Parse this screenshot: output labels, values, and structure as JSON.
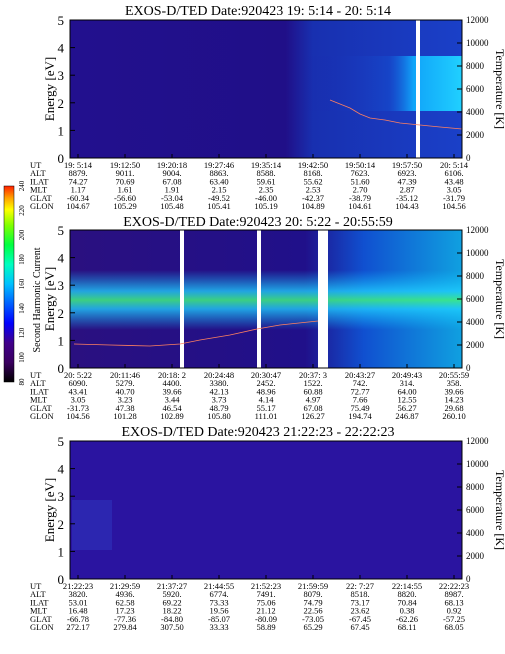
{
  "colorbar": {
    "label": "Second Harmonic Current",
    "ticks": [
      "240",
      "220",
      "200",
      "180",
      "160",
      "140",
      "120",
      "100",
      "80"
    ],
    "colors": [
      "#000000",
      "#3a0060",
      "#40008a",
      "#0000ff",
      "#0060ff",
      "#00c0ff",
      "#00ffc0",
      "#00ff40",
      "#80ff00",
      "#ffff00",
      "#ffa000",
      "#ff2000"
    ]
  },
  "chart_data": [
    {
      "type": "heatmap",
      "title": "EXOS-D/TED   Date:920423  19: 5:14 - 20: 5:14",
      "ylabel": "Energy [eV]",
      "ylabel_right": "Temperature [K]",
      "ylim": [
        0,
        5
      ],
      "yticks": [
        "0",
        "1",
        "2",
        "3",
        "4",
        "5"
      ],
      "ylim_right": [
        0,
        12000
      ],
      "yticks_right": [
        "0",
        "2000",
        "4000",
        "6000",
        "8000",
        "10000",
        "12000"
      ],
      "row_labels": [
        "UT",
        "ALT",
        "ILAT",
        "MLT",
        "GLAT",
        "GLON"
      ],
      "columns": [
        [
          "19: 5:14",
          "8879.",
          "74.27",
          "1.17",
          "-60.34",
          "104.67"
        ],
        [
          "19:12:50",
          "9011.",
          "70.69",
          "1.61",
          "-56.60",
          "105.29"
        ],
        [
          "19:20:18",
          "9004.",
          "67.08",
          "1.91",
          "-53.04",
          "105.48"
        ],
        [
          "19:27:46",
          "8863.",
          "63.40",
          "2.15",
          "-49.52",
          "105.41"
        ],
        [
          "19:35:14",
          "8588.",
          "59.61",
          "2.35",
          "-46.00",
          "105.19"
        ],
        [
          "19:42:50",
          "8168.",
          "55.62",
          "2.53",
          "-42.37",
          "104.89"
        ],
        [
          "19:50:14",
          "7623.",
          "51.60",
          "2.70",
          "-38.79",
          "104.61"
        ],
        [
          "19:57:50",
          "6923.",
          "47.39",
          "2.87",
          "-35.12",
          "104.43"
        ],
        [
          "20: 5:14",
          "6106.",
          "43.48",
          "3.05",
          "-31.79",
          "104.56"
        ]
      ]
    },
    {
      "type": "heatmap",
      "title": "EXOS-D/TED   Date:920423  20: 5:22 - 20:55:59",
      "ylabel": "Energy [eV]",
      "ylabel_right": "Temperature [K]",
      "ylim": [
        0,
        5
      ],
      "yticks": [
        "0",
        "1",
        "2",
        "3",
        "4",
        "5"
      ],
      "ylim_right": [
        0,
        12000
      ],
      "yticks_right": [
        "0",
        "2000",
        "4000",
        "6000",
        "8000",
        "10000",
        "12000"
      ],
      "row_labels": [
        "UT",
        "ALT",
        "ILAT",
        "MLT",
        "GLAT",
        "GLON"
      ],
      "columns": [
        [
          "20: 5:22",
          "6090.",
          "43.41",
          "3.05",
          "-31.73",
          "104.56"
        ],
        [
          "20:11:46",
          "5279.",
          "40.70",
          "3.23",
          "47.38",
          "101.28"
        ],
        [
          "20:18: 2",
          "4400.",
          "39.66",
          "3.44",
          "46.54",
          "102.89"
        ],
        [
          "20:24:48",
          "3380.",
          "42.13",
          "3.73",
          "48.79",
          "105.80"
        ],
        [
          "20:30:47",
          "2452.",
          "48.96",
          "4.14",
          "55.17",
          "111.01"
        ],
        [
          "20:37: 3",
          "1522.",
          "60.88",
          "4.97",
          "67.08",
          "126.27"
        ],
        [
          "20:43:27",
          "742.",
          "72.77",
          "7.66",
          "75.49",
          "194.74"
        ],
        [
          "20:49:43",
          "314.",
          "64.00",
          "12.55",
          "56.27",
          "246.87"
        ],
        [
          "20:55:59",
          "358.",
          "39.66",
          "14.23",
          "29.68",
          "260.10"
        ]
      ]
    },
    {
      "type": "heatmap",
      "title": "EXOS-D/TED   Date:920423  21:22:23 - 22:22:23",
      "ylabel": "Energy [eV]",
      "ylabel_right": "Temperature [K]",
      "ylim": [
        0,
        5
      ],
      "yticks": [
        "0",
        "1",
        "2",
        "3",
        "4",
        "5"
      ],
      "ylim_right": [
        0,
        12000
      ],
      "yticks_right": [
        "0",
        "2000",
        "4000",
        "6000",
        "8000",
        "10000",
        "12000"
      ],
      "row_labels": [
        "UT",
        "ALT",
        "ILAT",
        "MLT",
        "GLAT",
        "GLON"
      ],
      "columns": [
        [
          "21:22:23",
          "3820.",
          "53.01",
          "16.48",
          "-66.78",
          "272.17"
        ],
        [
          "21:29:59",
          "4936.",
          "62.58",
          "17.23",
          "-77.36",
          "279.84"
        ],
        [
          "21:37:27",
          "5920.",
          "69.22",
          "18.22",
          "-84.80",
          "307.50"
        ],
        [
          "21:44:55",
          "6774.",
          "73.33",
          "19.56",
          "-85.07",
          "33.33"
        ],
        [
          "21:52:23",
          "7491.",
          "75.06",
          "21.12",
          "-80.09",
          "58.89"
        ],
        [
          "21:59:59",
          "8079.",
          "74.79",
          "22.56",
          "-73.05",
          "65.29"
        ],
        [
          "22: 7:27",
          "8518.",
          "73.17",
          "23.62",
          "-67.45",
          "67.45"
        ],
        [
          "22:14:55",
          "8820.",
          "70.84",
          "0.38",
          "-62.26",
          "68.11"
        ],
        [
          "22:22:23",
          "8987.",
          "68.13",
          "0.92",
          "-57.25",
          "68.05"
        ]
      ]
    }
  ]
}
